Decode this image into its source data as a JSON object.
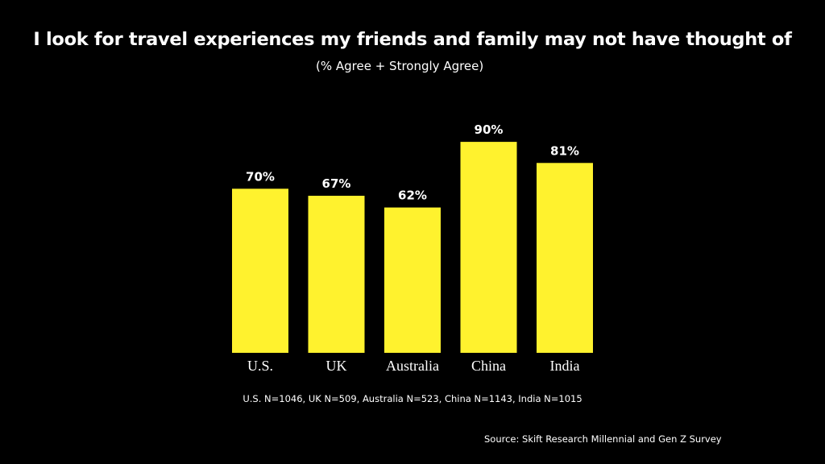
{
  "title": "I look for travel experiences my friends and family may not have thought of",
  "subtitle": "(% Agree + Strongly Agree)",
  "note": "U.S. N=1046, UK N=509, Australia N=523, China N=1143, India N=1015",
  "source": "Source:  Skift Research Millennial and Gen Z Survey",
  "colors": {
    "background": "#000000",
    "bar": "#FFF22E",
    "text": "#FFFFFF"
  },
  "chart_data": {
    "type": "bar",
    "categories": [
      "U.S.",
      "UK",
      "Australia",
      "China",
      "India"
    ],
    "values": [
      70,
      67,
      62,
      90,
      81
    ],
    "data_labels": [
      "70%",
      "67%",
      "62%",
      "90%",
      "81%"
    ],
    "ylim": [
      0,
      100
    ],
    "grid": false,
    "legend": "none"
  }
}
